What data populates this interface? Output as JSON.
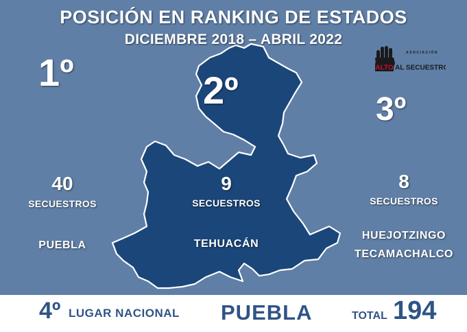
{
  "colors": {
    "background": "#5f7fa6",
    "map_fill": "#1b467a",
    "map_stroke": "#ffffff",
    "text_light": "#ffffff",
    "footer_bg": "#ffffff",
    "footer_text": "#2f5486"
  },
  "title": {
    "line1": "POSICIÓN EN RANKING DE ESTADOS",
    "line2": "DICIEMBRE 2018 – ABRIL 2022"
  },
  "logo": {
    "icon": "raised-hand-icon",
    "top_text": "ASOCIACIÓN",
    "word1": "ALTO",
    "word2": "AL SECUESTRO"
  },
  "rankings": [
    {
      "position": "1º",
      "count": "40",
      "unit": "SECUESTROS",
      "place": "PUEBLA"
    },
    {
      "position": "2º",
      "count": "9",
      "unit": "SECUESTROS",
      "place": "TEHUACÁN"
    },
    {
      "position": "3º",
      "count": "8",
      "unit": "SECUESTROS",
      "place_lines": [
        "HUEJOTZINGO",
        "TECAMACHALCO"
      ]
    }
  ],
  "footer": {
    "rank": "4º",
    "rank_label": "LUGAR NACIONAL",
    "state": "PUEBLA",
    "total_label": "TOTAL",
    "total_value": "194"
  }
}
